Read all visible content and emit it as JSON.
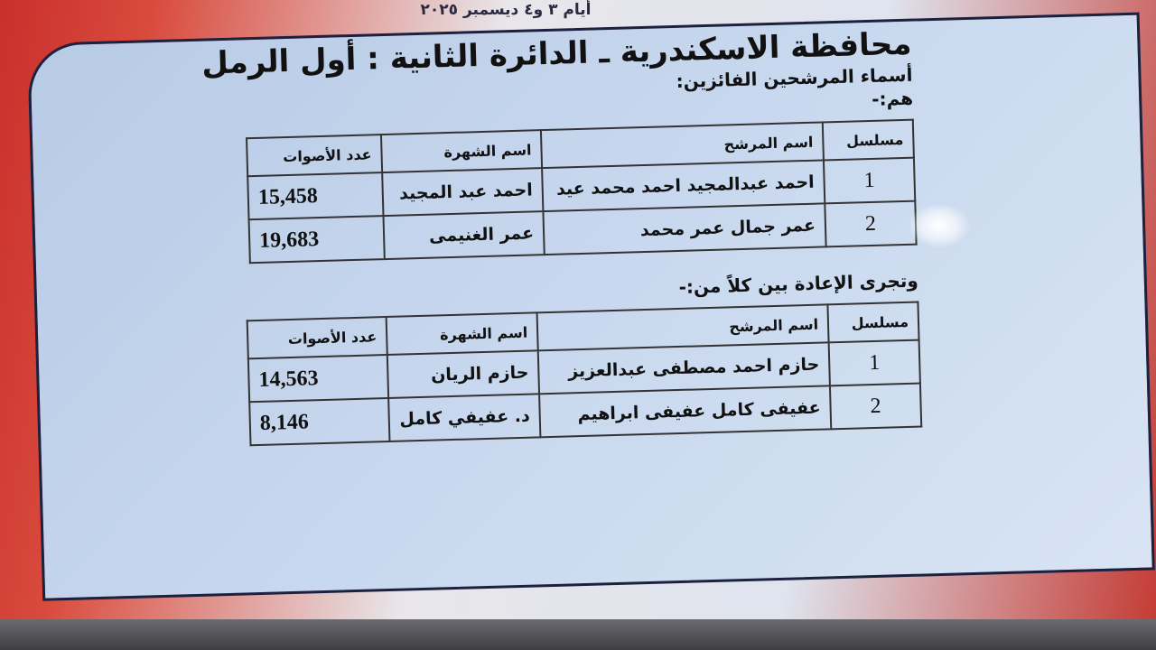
{
  "top_caption": "أيام ٣ و٤ ديسمبر ٢٠٢٥",
  "title": "محافظة الاسكندرية ـ الدائرة الثانية : أول الرمل",
  "winners_heading": "أسماء المرشحين الفائزين:",
  "winners_intro": "هم:-",
  "runoff_heading": "وتجرى الإعادة بين كلاً من:-",
  "columns": {
    "serial": "مسلسل",
    "candidate_name": "اسم المرشح",
    "known_as": "اسم الشهرة",
    "votes": "عدد الأصوات"
  },
  "winners": [
    {
      "serial": "1",
      "candidate_name": "احمد عبدالمجيد احمد محمد عيد",
      "known_as": "احمد عبد المجيد",
      "votes": "15,458"
    },
    {
      "serial": "2",
      "candidate_name": "عمر جمال عمر محمد",
      "known_as": "عمر الغنيمى",
      "votes": "19,683"
    }
  ],
  "runoff": [
    {
      "serial": "1",
      "candidate_name": "حازم احمد مصطفى عبدالعزيز",
      "known_as": "حازم الريان",
      "votes": "14,563"
    },
    {
      "serial": "2",
      "candidate_name": "عفيفى كامل عفيفى ابراهيم",
      "known_as": "د. عفيفي كامل",
      "votes": "8,146"
    }
  ]
}
